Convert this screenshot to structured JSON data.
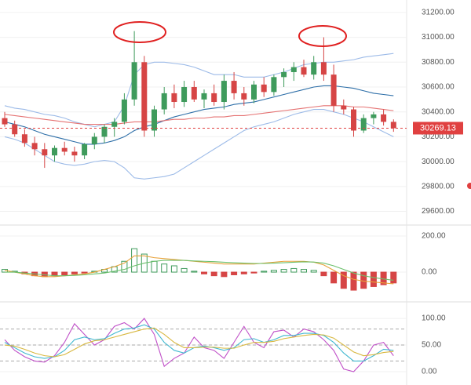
{
  "chart_data": [
    {
      "type": "candlestick",
      "open": [
        30350,
        30300,
        30220,
        30150,
        30100,
        30050,
        30110,
        30080,
        30050,
        30140,
        30200,
        30280,
        30320,
        30500,
        30800,
        30250,
        30420,
        30550,
        30480,
        30600,
        30500,
        30550,
        30480,
        30650,
        30550,
        30500,
        30620,
        30560,
        30680,
        30720,
        30760,
        30700,
        30800,
        30700,
        30450,
        30420,
        30250,
        30350,
        30380,
        30320
      ],
      "high": [
        30400,
        30330,
        30260,
        30200,
        30150,
        30130,
        30160,
        30120,
        30150,
        30230,
        30300,
        30350,
        30550,
        31050,
        30850,
        30450,
        30600,
        30620,
        30650,
        30650,
        30580,
        30620,
        30700,
        30720,
        30600,
        30650,
        30680,
        30700,
        30750,
        30800,
        30820,
        30850,
        31000,
        30780,
        30500,
        30440,
        30380,
        30400,
        30420,
        30340
      ],
      "low": [
        30280,
        30200,
        30120,
        30050,
        29950,
        30000,
        30050,
        30000,
        30020,
        30100,
        30150,
        30200,
        30300,
        30450,
        30200,
        30200,
        30380,
        30430,
        30440,
        30480,
        30430,
        30450,
        30420,
        30500,
        30450,
        30470,
        30520,
        30530,
        30600,
        30650,
        30680,
        30660,
        30650,
        30400,
        30380,
        30200,
        30230,
        30300,
        30290,
        30240
      ],
      "close": [
        30300,
        30220,
        30150,
        30100,
        30050,
        30110,
        30080,
        30050,
        30140,
        30200,
        30280,
        30320,
        30500,
        30800,
        30250,
        30420,
        30550,
        30480,
        30600,
        30500,
        30550,
        30480,
        30650,
        30550,
        30500,
        30620,
        30560,
        30680,
        30720,
        30760,
        30700,
        30800,
        30700,
        30450,
        30420,
        30250,
        30350,
        30380,
        30320,
        30269.13
      ],
      "up_color": "#3f9b5c",
      "down_color": "#d64545",
      "series": [
        {
          "color": "#9dbbe8",
          "values": [
            30450,
            30430,
            30420,
            30400,
            30380,
            30370,
            30350,
            30320,
            30300,
            30280,
            30300,
            30320,
            30450,
            30700,
            30780,
            30800,
            30800,
            30790,
            30780,
            30760,
            30730,
            30700,
            30700,
            30700,
            30680,
            30680,
            30680,
            30700,
            30720,
            30750,
            30780,
            30790,
            30800,
            30800,
            30810,
            30820,
            30840,
            30850,
            30860,
            30870
          ]
        },
        {
          "color": "#9dbbe8",
          "values": [
            30200,
            30180,
            30150,
            30100,
            30050,
            30000,
            29980,
            29970,
            29980,
            30000,
            30010,
            30000,
            29950,
            29870,
            29860,
            29870,
            29880,
            29900,
            29950,
            30000,
            30050,
            30100,
            30150,
            30200,
            30250,
            30280,
            30300,
            30320,
            30350,
            30380,
            30400,
            30420,
            30420,
            30400,
            30380,
            30350,
            30320,
            30280,
            30240,
            30200
          ]
        },
        {
          "color": "#2e6fa8",
          "values": [
            30320,
            30300,
            30280,
            30250,
            30220,
            30200,
            30180,
            30160,
            30140,
            30140,
            30150,
            30170,
            30200,
            30250,
            30280,
            30300,
            30330,
            30360,
            30380,
            30400,
            30420,
            30430,
            30440,
            30460,
            30470,
            30480,
            30500,
            30520,
            30540,
            30560,
            30580,
            30600,
            30610,
            30610,
            30600,
            30590,
            30570,
            30550,
            30540,
            30530
          ]
        },
        {
          "color": "#e57373",
          "values": [
            30380,
            30370,
            30360,
            30350,
            30340,
            30330,
            30320,
            30310,
            30300,
            30300,
            30300,
            30300,
            30310,
            30320,
            30320,
            30320,
            30330,
            30340,
            30340,
            30350,
            30350,
            30360,
            30360,
            30370,
            30370,
            30380,
            30390,
            30400,
            30410,
            30420,
            30430,
            30440,
            30450,
            30450,
            30450,
            30440,
            30440,
            30430,
            30420,
            30410
          ]
        }
      ],
      "last_price": 30269.13,
      "ylim": [
        29490,
        31300
      ],
      "yticks": [
        {
          "value": 31200,
          "label": "31200.00"
        },
        {
          "value": 31000,
          "label": "31000.00"
        },
        {
          "value": 30800,
          "label": "30800.00"
        },
        {
          "value": 30600,
          "label": "30600.00"
        },
        {
          "value": 30400,
          "label": "30400.00"
        },
        {
          "value": 30200,
          "label": "30200.00"
        },
        {
          "value": 30000,
          "label": "30000.00"
        },
        {
          "value": 29800,
          "label": "29800.00"
        },
        {
          "value": 29600,
          "label": "29600.00"
        }
      ]
    },
    {
      "type": "macd",
      "values": [
        15,
        5,
        -10,
        -20,
        -25,
        -20,
        -15,
        -10,
        -5,
        5,
        15,
        30,
        60,
        130,
        100,
        60,
        45,
        35,
        20,
        5,
        -10,
        -20,
        -25,
        -15,
        -10,
        -5,
        5,
        10,
        15,
        20,
        15,
        10,
        -20,
        -60,
        -90,
        -100,
        -90,
        -80,
        -70,
        -60
      ],
      "up_color": "#3f9b5c",
      "down_color": "#d64545",
      "series": [
        {
          "color": "#e8a23a",
          "values": [
            10,
            0,
            -10,
            -20,
            -25,
            -25,
            -20,
            -15,
            -10,
            0,
            15,
            30,
            50,
            90,
            90,
            80,
            75,
            70,
            65,
            60,
            55,
            50,
            45,
            45,
            45,
            45,
            50,
            55,
            60,
            60,
            60,
            55,
            40,
            10,
            -20,
            -40,
            -50,
            -55,
            -60,
            -65
          ]
        },
        {
          "color": "#6cc06c",
          "values": [
            0,
            0,
            -5,
            -10,
            -15,
            -20,
            -20,
            -18,
            -15,
            -10,
            -5,
            5,
            15,
            35,
            50,
            60,
            65,
            65,
            65,
            62,
            60,
            58,
            55,
            52,
            50,
            48,
            48,
            50,
            52,
            55,
            57,
            56,
            50,
            35,
            15,
            -5,
            -20,
            -30,
            -38,
            -45
          ]
        }
      ],
      "ylim": [
        -165,
        261
      ],
      "yticks": [
        {
          "value": 200,
          "label": "200.00"
        },
        {
          "value": 0,
          "label": "0.00"
        }
      ]
    },
    {
      "type": "line",
      "series": [
        {
          "color": "#c050c8",
          "values": [
            60,
            40,
            28,
            20,
            18,
            30,
            55,
            90,
            70,
            50,
            60,
            85,
            92,
            80,
            100,
            70,
            10,
            25,
            35,
            65,
            45,
            40,
            25,
            55,
            85,
            55,
            45,
            75,
            78,
            65,
            80,
            75,
            60,
            40,
            5,
            0,
            20,
            50,
            55,
            30
          ]
        },
        {
          "color": "#40b8d0",
          "values": [
            55,
            45,
            35,
            28,
            25,
            28,
            40,
            60,
            65,
            60,
            62,
            72,
            80,
            82,
            88,
            80,
            55,
            40,
            35,
            45,
            48,
            45,
            40,
            45,
            60,
            62,
            55,
            60,
            68,
            68,
            72,
            72,
            68,
            55,
            35,
            20,
            20,
            30,
            42,
            40
          ]
        },
        {
          "color": "#d8b840",
          "values": [
            50,
            48,
            42,
            35,
            30,
            28,
            32,
            42,
            52,
            58,
            60,
            65,
            70,
            75,
            80,
            82,
            70,
            55,
            45,
            45,
            46,
            46,
            44,
            44,
            50,
            55,
            55,
            57,
            62,
            65,
            68,
            70,
            69,
            63,
            50,
            37,
            30,
            32,
            36,
            38
          ]
        }
      ],
      "levels": [
        80,
        50,
        20
      ],
      "ylim": [
        -25,
        131
      ],
      "yticks": [
        {
          "value": 100,
          "label": "100.00"
        },
        {
          "value": 50,
          "label": "50.00"
        },
        {
          "value": 0,
          "label": "0.00"
        }
      ]
    }
  ]
}
